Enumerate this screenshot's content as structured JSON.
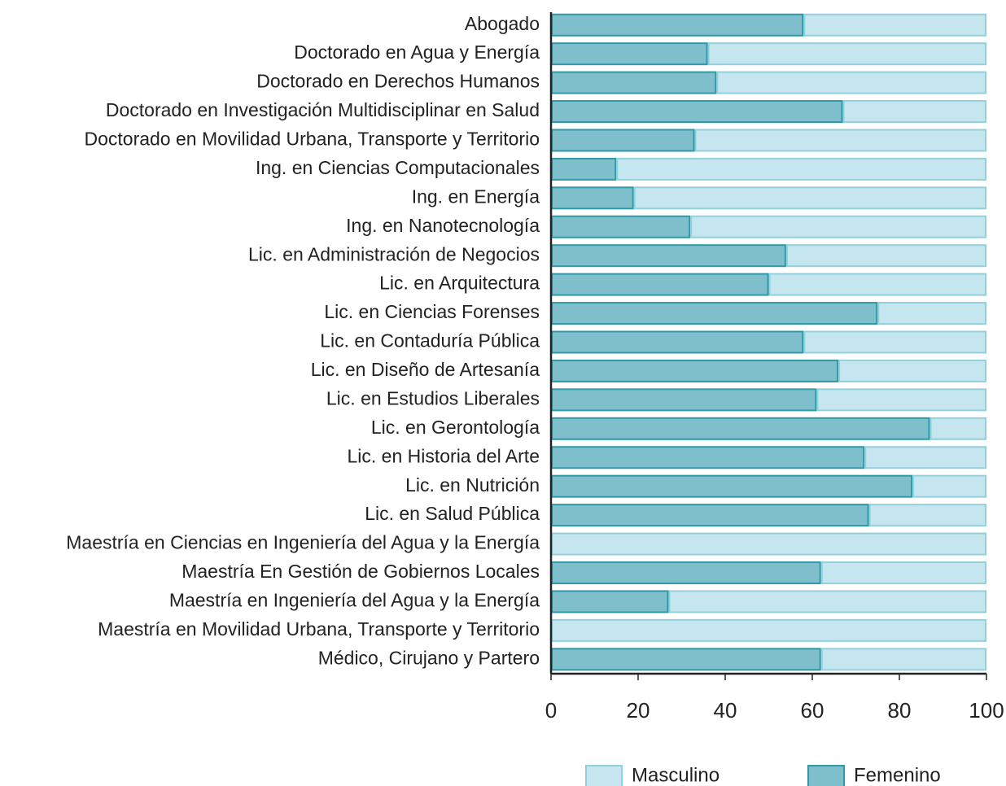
{
  "chart_data": {
    "type": "stacked-barh",
    "categories": [
      "Abogado",
      "Doctorado en Agua y Energía",
      "Doctorado en Derechos Humanos",
      "Doctorado en Investigación Multidisciplinar en Salud",
      "Doctorado en Movilidad Urbana, Transporte y Territorio",
      "Ing. en Ciencias Computacionales",
      "Ing. en Energía",
      "Ing. en Nanotecnología",
      "Lic. en Administración de Negocios",
      "Lic. en Arquitectura",
      "Lic. en Ciencias Forenses",
      "Lic. en Contaduría Pública",
      "Lic. en Diseño de Artesanía",
      "Lic. en Estudios Liberales",
      "Lic. en Gerontología",
      "Lic. en Historia del Arte",
      "Lic. en Nutrición",
      "Lic. en Salud Pública",
      "Maestría en Ciencias en Ingeniería del Agua y la Energía",
      "Maestría En Gestión de Gobiernos Locales",
      "Maestría en Ingeniería del Agua y la Energía",
      "Maestría en Movilidad Urbana, Transporte y Territorio",
      "Médico, Cirujano y Partero"
    ],
    "series": [
      {
        "name": "Masculino",
        "color": "#c5e6ef",
        "values": [
          42,
          64,
          62,
          33,
          67,
          85,
          81,
          68,
          46,
          50,
          25,
          42,
          34,
          39,
          13,
          28,
          17,
          27,
          100,
          38,
          73,
          100,
          38
        ]
      },
      {
        "name": "Femenino",
        "color": "#7fbfcc",
        "values": [
          58,
          36,
          38,
          67,
          33,
          15,
          19,
          32,
          54,
          50,
          75,
          58,
          66,
          61,
          87,
          72,
          83,
          73,
          0,
          62,
          27,
          0,
          62
        ]
      }
    ],
    "xlim": [
      0,
      100
    ],
    "xticks": [
      0,
      20,
      40,
      60,
      80,
      100
    ]
  }
}
